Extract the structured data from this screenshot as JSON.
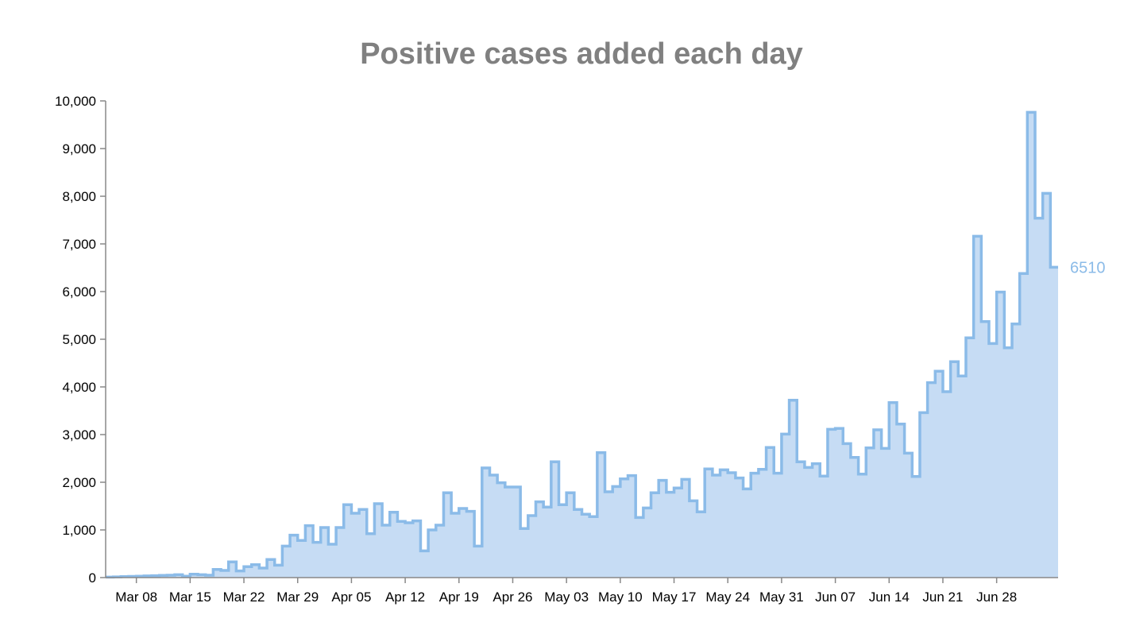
{
  "colors": {
    "area_fill": "#c6dcf4",
    "line": "#8bbbe8",
    "end_label": "#8bbbe8",
    "title": "#808080"
  },
  "chart_data": {
    "type": "area",
    "title": "Positive cases added each day",
    "subtitle": "",
    "xlabel": "",
    "ylabel": "",
    "start_date": "2020-03-04",
    "ylim": [
      0,
      10000
    ],
    "y_ticks": [
      0,
      1000,
      2000,
      3000,
      4000,
      5000,
      6000,
      7000,
      8000,
      9000,
      10000
    ],
    "y_tick_labels": [
      "0",
      "1,000",
      "2,000",
      "3,000",
      "4,000",
      "5,000",
      "6,000",
      "7,000",
      "8,000",
      "9,000",
      "10,000"
    ],
    "x_tick_labels": [
      "Mar 08",
      "Mar 15",
      "Mar 22",
      "Mar 29",
      "Apr 05",
      "Apr 12",
      "Apr 19",
      "Apr 26",
      "May 03",
      "May 10",
      "May 17",
      "May 24",
      "May 31",
      "Jun 07",
      "Jun 14",
      "Jun 21",
      "Jun 28"
    ],
    "grid": false,
    "legend": "none",
    "end_label": "6510",
    "series": [
      {
        "values": [
          10,
          15,
          20,
          25,
          30,
          35,
          40,
          45,
          50,
          60,
          30,
          70,
          60,
          50,
          170,
          150,
          330,
          140,
          230,
          270,
          200,
          380,
          260,
          660,
          890,
          780,
          1090,
          740,
          1050,
          700,
          1050,
          1530,
          1350,
          1430,
          920,
          1550,
          1100,
          1370,
          1180,
          1150,
          1190,
          560,
          1000,
          1100,
          1780,
          1350,
          1450,
          1390,
          660,
          2300,
          2150,
          1990,
          1900,
          1900,
          1030,
          1300,
          1590,
          1480,
          2430,
          1530,
          1780,
          1430,
          1330,
          1280,
          2620,
          1800,
          1910,
          2070,
          2140,
          1260,
          1460,
          1780,
          2040,
          1790,
          1880,
          2060,
          1610,
          1380,
          2280,
          2150,
          2260,
          2200,
          2090,
          1860,
          2190,
          2270,
          2730,
          2190,
          3010,
          3720,
          2430,
          2310,
          2390,
          2130,
          3110,
          3130,
          2810,
          2520,
          2170,
          2720,
          3100,
          2710,
          3670,
          3220,
          2610,
          2120,
          3460,
          4090,
          4330,
          3900,
          4530,
          4230,
          5030,
          7160,
          5370,
          4910,
          5990,
          4820,
          5320,
          6380,
          9760,
          7540,
          8060,
          6510
        ]
      }
    ]
  }
}
